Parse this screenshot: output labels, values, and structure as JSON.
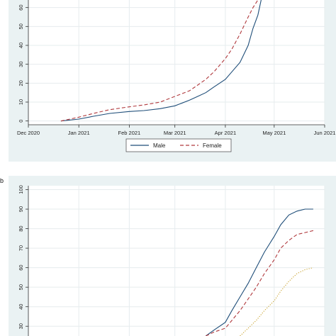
{
  "colors": {
    "panel_bg": "#eaf2f3",
    "grid": "#ffffff",
    "male": "#1f4e79",
    "female": "#b0393d",
    "third": "#c8a12a",
    "axis": "#333333"
  },
  "panel_b_label": "b",
  "chart_data": [
    {
      "type": "line",
      "panel": "a",
      "x_ticks": [
        "Dec 2020",
        "Jan 2021",
        "Feb 2021",
        "Mar 2021",
        "Apr 2021",
        "May 2021",
        "Jun 2021"
      ],
      "y_ticks": [
        "0",
        "10",
        "20",
        "30",
        "40",
        "50",
        "60"
      ],
      "xlim": [
        "2020-12-01",
        "2021-06-01"
      ],
      "ylim": [
        -2,
        64
      ],
      "grid": true,
      "legend": {
        "position": "bottom",
        "entries": [
          "Male",
          "Female"
        ]
      },
      "series": [
        {
          "name": "Male",
          "style": "solid",
          "x": [
            "2020-12-21",
            "2021-01-01",
            "2021-01-10",
            "2021-01-20",
            "2021-02-01",
            "2021-02-10",
            "2021-02-20",
            "2021-03-01",
            "2021-03-10",
            "2021-03-15",
            "2021-03-20",
            "2021-03-25",
            "2021-04-01",
            "2021-04-05",
            "2021-04-10",
            "2021-04-15",
            "2021-04-18",
            "2021-04-21",
            "2021-04-23"
          ],
          "y": [
            0,
            1,
            2.5,
            4,
            5,
            5.5,
            6.5,
            8,
            11,
            13,
            15,
            18,
            22,
            26,
            31,
            40,
            49,
            56,
            64
          ]
        },
        {
          "name": "Female",
          "style": "dashed",
          "x": [
            "2020-12-21",
            "2021-01-01",
            "2021-01-10",
            "2021-01-20",
            "2021-02-01",
            "2021-02-10",
            "2021-02-20",
            "2021-03-01",
            "2021-03-10",
            "2021-03-15",
            "2021-03-20",
            "2021-03-25",
            "2021-04-01",
            "2021-04-05",
            "2021-04-10",
            "2021-04-15",
            "2021-04-18",
            "2021-04-21"
          ],
          "y": [
            0,
            2,
            4,
            6,
            7.5,
            8.5,
            10,
            13,
            16,
            19,
            22,
            26,
            33,
            38,
            46,
            55,
            60,
            64
          ]
        }
      ]
    },
    {
      "type": "line",
      "panel": "b",
      "y_ticks": [
        "30",
        "40",
        "50",
        "60",
        "70",
        "80",
        "90",
        "100"
      ],
      "xlim": [
        "2020-12-01",
        "2021-06-01"
      ],
      "ylim": [
        25,
        102
      ],
      "grid": true,
      "series": [
        {
          "style": "solid",
          "x": [
            "2021-03-20",
            "2021-03-25",
            "2021-04-01",
            "2021-04-05",
            "2021-04-10",
            "2021-04-15",
            "2021-04-20",
            "2021-04-25",
            "2021-05-01",
            "2021-05-05",
            "2021-05-10",
            "2021-05-15",
            "2021-05-20",
            "2021-05-25"
          ],
          "y": [
            25,
            28,
            32,
            38,
            45,
            52,
            60,
            68,
            76,
            82,
            87,
            89,
            90,
            90
          ]
        },
        {
          "style": "dashed",
          "x": [
            "2021-03-20",
            "2021-03-25",
            "2021-04-01",
            "2021-04-05",
            "2021-04-10",
            "2021-04-15",
            "2021-04-20",
            "2021-04-25",
            "2021-05-01",
            "2021-05-05",
            "2021-05-10",
            "2021-05-15",
            "2021-05-20",
            "2021-05-25"
          ],
          "y": [
            25,
            27,
            29,
            33,
            38,
            44,
            50,
            57,
            64,
            70,
            74,
            77,
            78,
            79
          ]
        },
        {
          "style": "dotted",
          "x": [
            "2021-04-10",
            "2021-04-15",
            "2021-04-20",
            "2021-04-25",
            "2021-05-01",
            "2021-05-05",
            "2021-05-10",
            "2021-05-15",
            "2021-05-20",
            "2021-05-25"
          ],
          "y": [
            25,
            29,
            33,
            38,
            43,
            48,
            53,
            57,
            59,
            60
          ]
        }
      ]
    }
  ]
}
